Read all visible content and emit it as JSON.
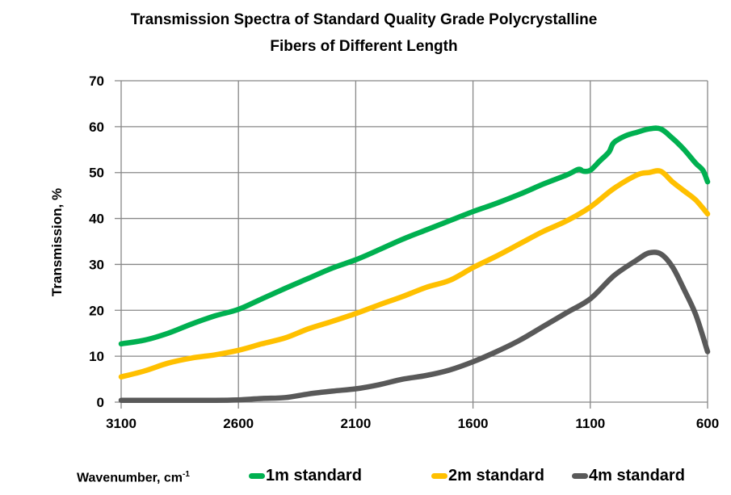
{
  "chart_data": {
    "type": "line",
    "title": "Transmission  Spectra  of  Standard Quality  Grade Polycrystalline",
    "title_line2": "Fibers of Different Length",
    "xlabel": "Wavenumber, cm",
    "xlabel_sup": "-1",
    "ylabel": "Transmission, %",
    "xlim": [
      3100,
      600
    ],
    "ylim": [
      0,
      70
    ],
    "x_reversed": true,
    "grid": true,
    "legend_position": "bottom",
    "x_ticks": [
      "3100",
      "2600",
      "2100",
      "1600",
      "1100",
      "600"
    ],
    "x_tick_values": [
      3100,
      2600,
      2100,
      1600,
      1100,
      600
    ],
    "y_ticks": [
      "0",
      "10",
      "20",
      "30",
      "40",
      "50",
      "60",
      "70"
    ],
    "y_tick_values": [
      0,
      10,
      20,
      30,
      40,
      50,
      60,
      70
    ],
    "series": [
      {
        "name": "1m standard",
        "color": "#00b050",
        "x": [
          3100,
          3000,
          2900,
          2800,
          2700,
          2600,
          2500,
          2400,
          2300,
          2200,
          2100,
          2000,
          1900,
          1800,
          1700,
          1600,
          1500,
          1400,
          1300,
          1200,
          1150,
          1130,
          1100,
          1060,
          1020,
          1000,
          950,
          900,
          850,
          800,
          750,
          700,
          650,
          620,
          600
        ],
        "values": [
          12.7,
          13.5,
          15.0,
          17.0,
          18.8,
          20.2,
          22.5,
          24.8,
          27.0,
          29.2,
          31.0,
          33.2,
          35.5,
          37.5,
          39.5,
          41.5,
          43.3,
          45.3,
          47.5,
          49.5,
          50.7,
          50.3,
          50.5,
          52.5,
          54.5,
          56.5,
          58.0,
          58.8,
          59.5,
          59.5,
          57.5,
          55.0,
          52.0,
          50.5,
          48.0
        ]
      },
      {
        "name": "2m standard",
        "color": "#ffc000",
        "x": [
          3100,
          3000,
          2900,
          2800,
          2700,
          2600,
          2500,
          2400,
          2300,
          2200,
          2100,
          2000,
          1900,
          1800,
          1700,
          1600,
          1500,
          1400,
          1300,
          1200,
          1100,
          1000,
          900,
          850,
          800,
          750,
          700,
          650,
          600
        ],
        "values": [
          5.5,
          6.8,
          8.5,
          9.6,
          10.3,
          11.3,
          12.7,
          14.0,
          16.0,
          17.6,
          19.3,
          21.2,
          23.0,
          25.0,
          26.5,
          29.3,
          31.8,
          34.5,
          37.2,
          39.5,
          42.5,
          46.5,
          49.5,
          50.0,
          50.3,
          48.0,
          46.0,
          44.0,
          41.0
        ]
      },
      {
        "name": "4m standard",
        "color": "#595959",
        "x": [
          3100,
          2900,
          2700,
          2600,
          2500,
          2400,
          2300,
          2200,
          2100,
          2000,
          1900,
          1800,
          1700,
          1600,
          1500,
          1400,
          1300,
          1200,
          1100,
          1000,
          900,
          850,
          800,
          750,
          700,
          650,
          600
        ],
        "values": [
          0.4,
          0.4,
          0.4,
          0.5,
          0.8,
          1.0,
          1.8,
          2.4,
          2.9,
          3.8,
          5.0,
          5.8,
          7.0,
          8.8,
          11.0,
          13.5,
          16.5,
          19.5,
          22.5,
          27.5,
          31.0,
          32.5,
          32.3,
          29.5,
          24.5,
          19.0,
          11.0
        ]
      }
    ]
  }
}
